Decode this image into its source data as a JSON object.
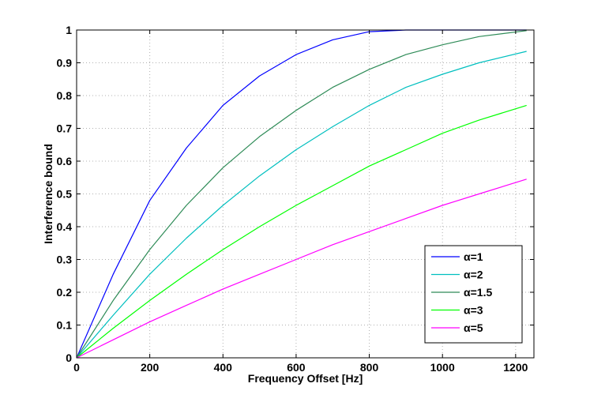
{
  "chart_data": {
    "type": "line",
    "title": "",
    "xlabel": "Frequency Offset [Hz]",
    "ylabel": "Interference bound",
    "xlim": [
      0,
      1250
    ],
    "ylim": [
      0,
      1
    ],
    "xticks": [
      0,
      200,
      400,
      600,
      800,
      1000,
      1200
    ],
    "xtick_labels": [
      "0",
      "200",
      "400",
      "600",
      "800",
      "1000",
      "1200"
    ],
    "yticks": [
      0,
      0.1,
      0.2,
      0.3,
      0.4,
      0.5,
      0.6,
      0.7,
      0.8,
      0.9,
      1
    ],
    "ytick_labels": [
      "0",
      "0.1",
      "0.2",
      "0.3",
      "0.4",
      "0.5",
      "0.6",
      "0.7",
      "0.8",
      "0.9",
      "1"
    ],
    "grid": true,
    "legend_position": "bottom-right",
    "x": [
      0,
      100,
      200,
      300,
      400,
      500,
      600,
      700,
      800,
      900,
      1000,
      1100,
      1230
    ],
    "series": [
      {
        "name": "α=1",
        "color": "#0000ff",
        "values": [
          0,
          0.255,
          0.48,
          0.64,
          0.77,
          0.86,
          0.925,
          0.97,
          0.995,
          1.0,
          1.0,
          1.0,
          1.0
        ]
      },
      {
        "name": "α=2",
        "color": "#00bfbf",
        "values": [
          0,
          0.13,
          0.255,
          0.365,
          0.465,
          0.555,
          0.635,
          0.705,
          0.77,
          0.825,
          0.865,
          0.9,
          0.935
        ]
      },
      {
        "name": "α=1.5",
        "color": "#2e8b57",
        "values": [
          0,
          0.175,
          0.33,
          0.465,
          0.58,
          0.675,
          0.755,
          0.825,
          0.88,
          0.925,
          0.955,
          0.98,
          0.998
        ]
      },
      {
        "name": "α=3",
        "color": "#00ff00",
        "values": [
          0,
          0.09,
          0.175,
          0.255,
          0.33,
          0.4,
          0.465,
          0.525,
          0.585,
          0.635,
          0.685,
          0.725,
          0.77
        ]
      },
      {
        "name": "α=5",
        "color": "#ff00ff",
        "values": [
          0,
          0.055,
          0.11,
          0.16,
          0.21,
          0.255,
          0.3,
          0.345,
          0.385,
          0.425,
          0.465,
          0.5,
          0.545
        ]
      }
    ]
  }
}
